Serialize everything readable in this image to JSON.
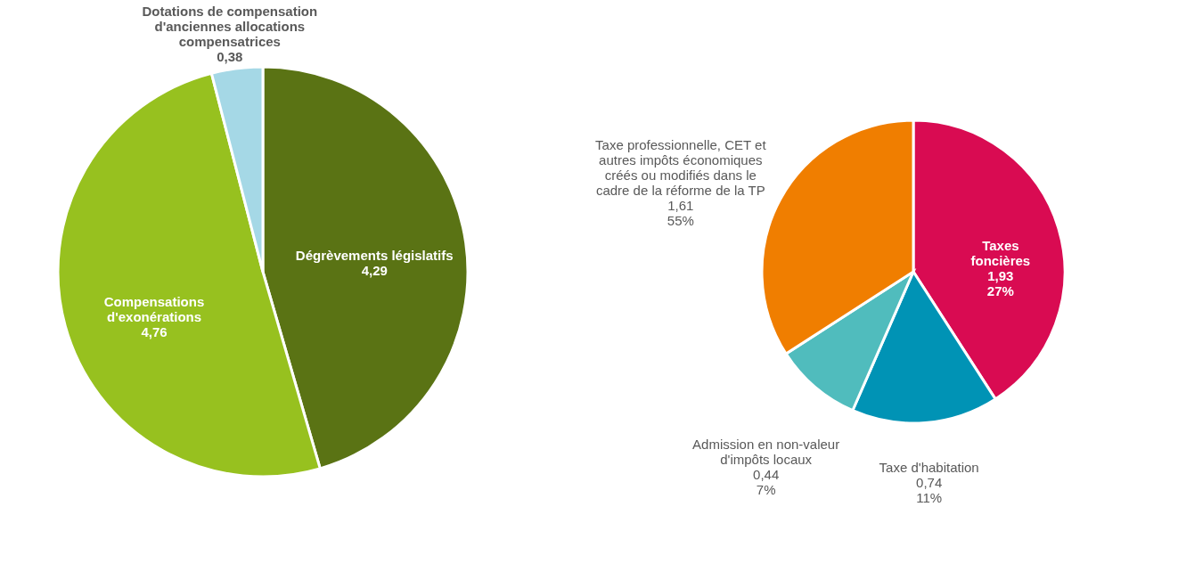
{
  "chart_data": [
    {
      "type": "pie",
      "categories": [
        "Dégrèvements législatifs",
        "Compensations d'exonérations",
        "Dotations de compensation d'anciennes allocations compensatrices"
      ],
      "values": [
        4.29,
        4.76,
        0.38
      ],
      "colors": [
        "#5a7314",
        "#97c11f",
        "#a5d8e6"
      ],
      "value_labels": [
        "4,29",
        "4,76",
        "0,38"
      ]
    },
    {
      "type": "pie",
      "categories": [
        "Taxes foncières",
        "Taxe d'habitation",
        "Admission en non-valeur d'impôts locaux",
        "Taxe professionnelle, CET et autres impôts économiques créés ou modifiés dans le cadre de la réforme de la TP"
      ],
      "values": [
        1.93,
        0.74,
        0.44,
        1.61
      ],
      "colors": [
        "#d90b52",
        "#0093b5",
        "#50bcbd",
        "#f07e00"
      ],
      "value_labels": [
        "1,93\n27%",
        "0,74\n11%",
        "0,44\n7%",
        "1,61\n55%"
      ]
    }
  ]
}
